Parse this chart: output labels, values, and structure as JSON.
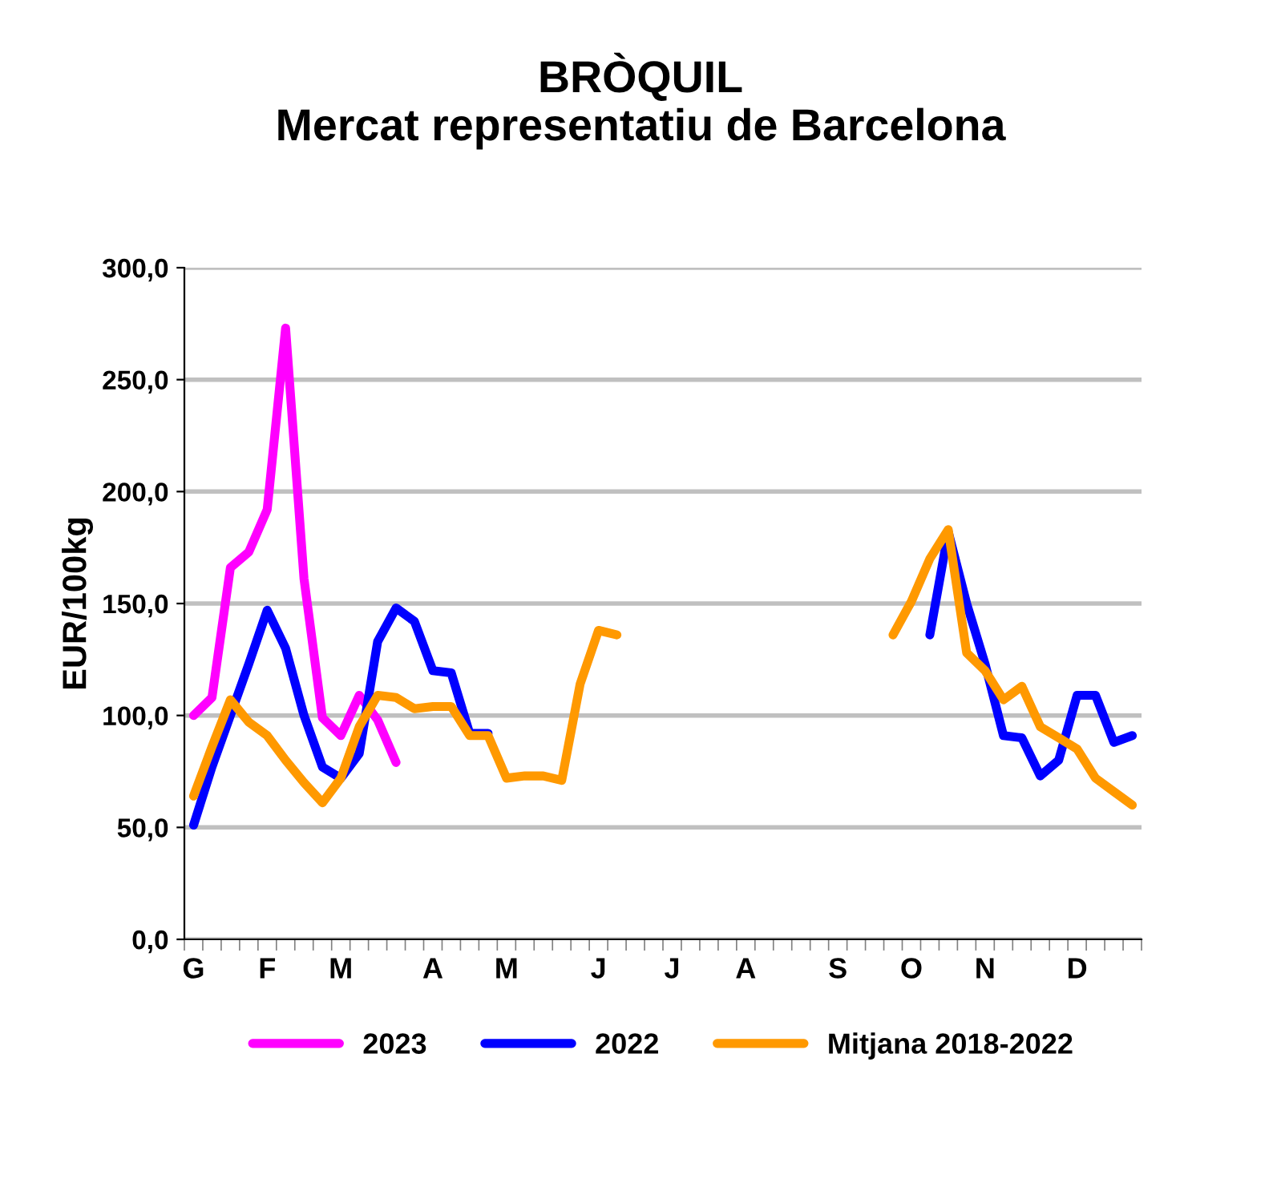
{
  "chart_data": {
    "type": "line",
    "title": "BRÒQUIL\nMercat representatiu de Barcelona",
    "ylabel": "EUR/100kg",
    "categories": [
      "G",
      null,
      null,
      null,
      "F",
      null,
      null,
      null,
      "M",
      null,
      null,
      null,
      null,
      "A",
      null,
      null,
      null,
      "M",
      null,
      null,
      null,
      null,
      "J",
      null,
      null,
      null,
      "J",
      null,
      null,
      null,
      "A",
      null,
      null,
      null,
      null,
      "S",
      null,
      null,
      null,
      "O",
      null,
      null,
      null,
      "N",
      null,
      null,
      null,
      null,
      "D",
      null,
      null,
      null
    ],
    "series": [
      {
        "name": "2023",
        "color": "#ff00ff",
        "values": [
          100,
          108,
          166,
          173,
          192,
          273,
          161,
          99,
          91,
          109,
          98,
          79,
          null,
          null,
          null,
          null,
          null,
          null,
          null,
          null,
          null,
          null,
          null,
          null,
          null,
          null,
          null,
          null,
          null,
          null,
          null,
          null,
          null,
          null,
          null,
          null,
          null,
          null,
          null,
          null,
          null,
          null,
          null,
          null,
          null,
          null,
          null,
          null,
          null,
          null,
          null,
          null
        ]
      },
      {
        "name": "2022",
        "color": "#0000ff",
        "values": [
          51,
          77,
          100,
          123,
          147,
          130,
          100,
          77,
          72,
          83,
          133,
          148,
          142,
          120,
          119,
          92,
          92,
          null,
          null,
          null,
          null,
          null,
          null,
          null,
          null,
          null,
          null,
          null,
          null,
          null,
          null,
          null,
          null,
          null,
          null,
          null,
          null,
          null,
          null,
          null,
          136,
          182,
          150,
          123,
          91,
          90,
          73,
          80,
          109,
          109,
          88,
          91
        ]
      },
      {
        "name": "Mitjana 2018-2022",
        "color": "#ff9900",
        "values": [
          64,
          86,
          107,
          97,
          91,
          80,
          70,
          61,
          72,
          95,
          109,
          108,
          103,
          104,
          104,
          91,
          91,
          72,
          73,
          73,
          71,
          114,
          138,
          136,
          null,
          null,
          null,
          null,
          null,
          null,
          null,
          null,
          null,
          null,
          null,
          null,
          null,
          null,
          136,
          151,
          170,
          183,
          128,
          120,
          107,
          113,
          95,
          90,
          85,
          72,
          66,
          60
        ]
      }
    ],
    "ylim": [
      0,
      300
    ],
    "yticks": [
      {
        "value": 0,
        "label": "0,0"
      },
      {
        "value": 50,
        "label": "50,0"
      },
      {
        "value": 100,
        "label": "100,0"
      },
      {
        "value": 150,
        "label": "150,0"
      },
      {
        "value": 200,
        "label": "200,0"
      },
      {
        "value": 250,
        "label": "250,0"
      },
      {
        "value": 300,
        "label": "300,0"
      }
    ],
    "grid": "y",
    "legend": "bottom",
    "marker": "none",
    "line_style": "solid"
  }
}
